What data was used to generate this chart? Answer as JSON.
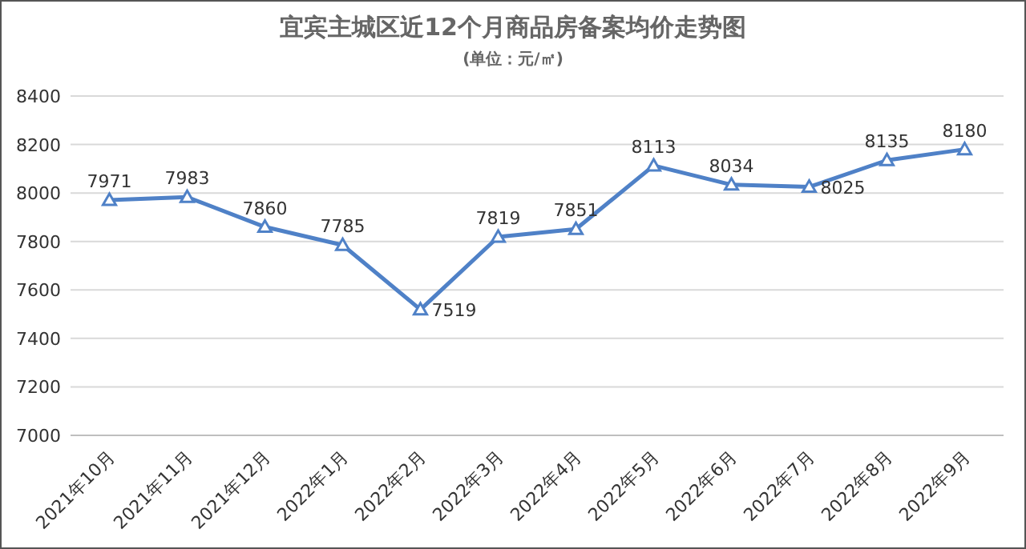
{
  "chart_data": {
    "type": "line",
    "title": "宜宾主城区近12个月商品房备案均价走势图",
    "subtitle": "(单位：元/㎡)",
    "categories": [
      "2021年10月",
      "2021年11月",
      "2021年12月",
      "2022年1月",
      "2022年2月",
      "2022年3月",
      "2022年4月",
      "2022年5月",
      "2022年6月",
      "2022年7月",
      "2022年8月",
      "2022年9月"
    ],
    "values": [
      7971,
      7983,
      7860,
      7785,
      7519,
      7819,
      7851,
      8113,
      8034,
      8025,
      8135,
      8180
    ],
    "color": "#4f81c7",
    "ylim": [
      7000,
      8400
    ],
    "yticks": [
      7000,
      7200,
      7400,
      7600,
      7800,
      8000,
      8200,
      8400
    ],
    "grid": "y",
    "marker": "triangle",
    "data_labels": true
  }
}
